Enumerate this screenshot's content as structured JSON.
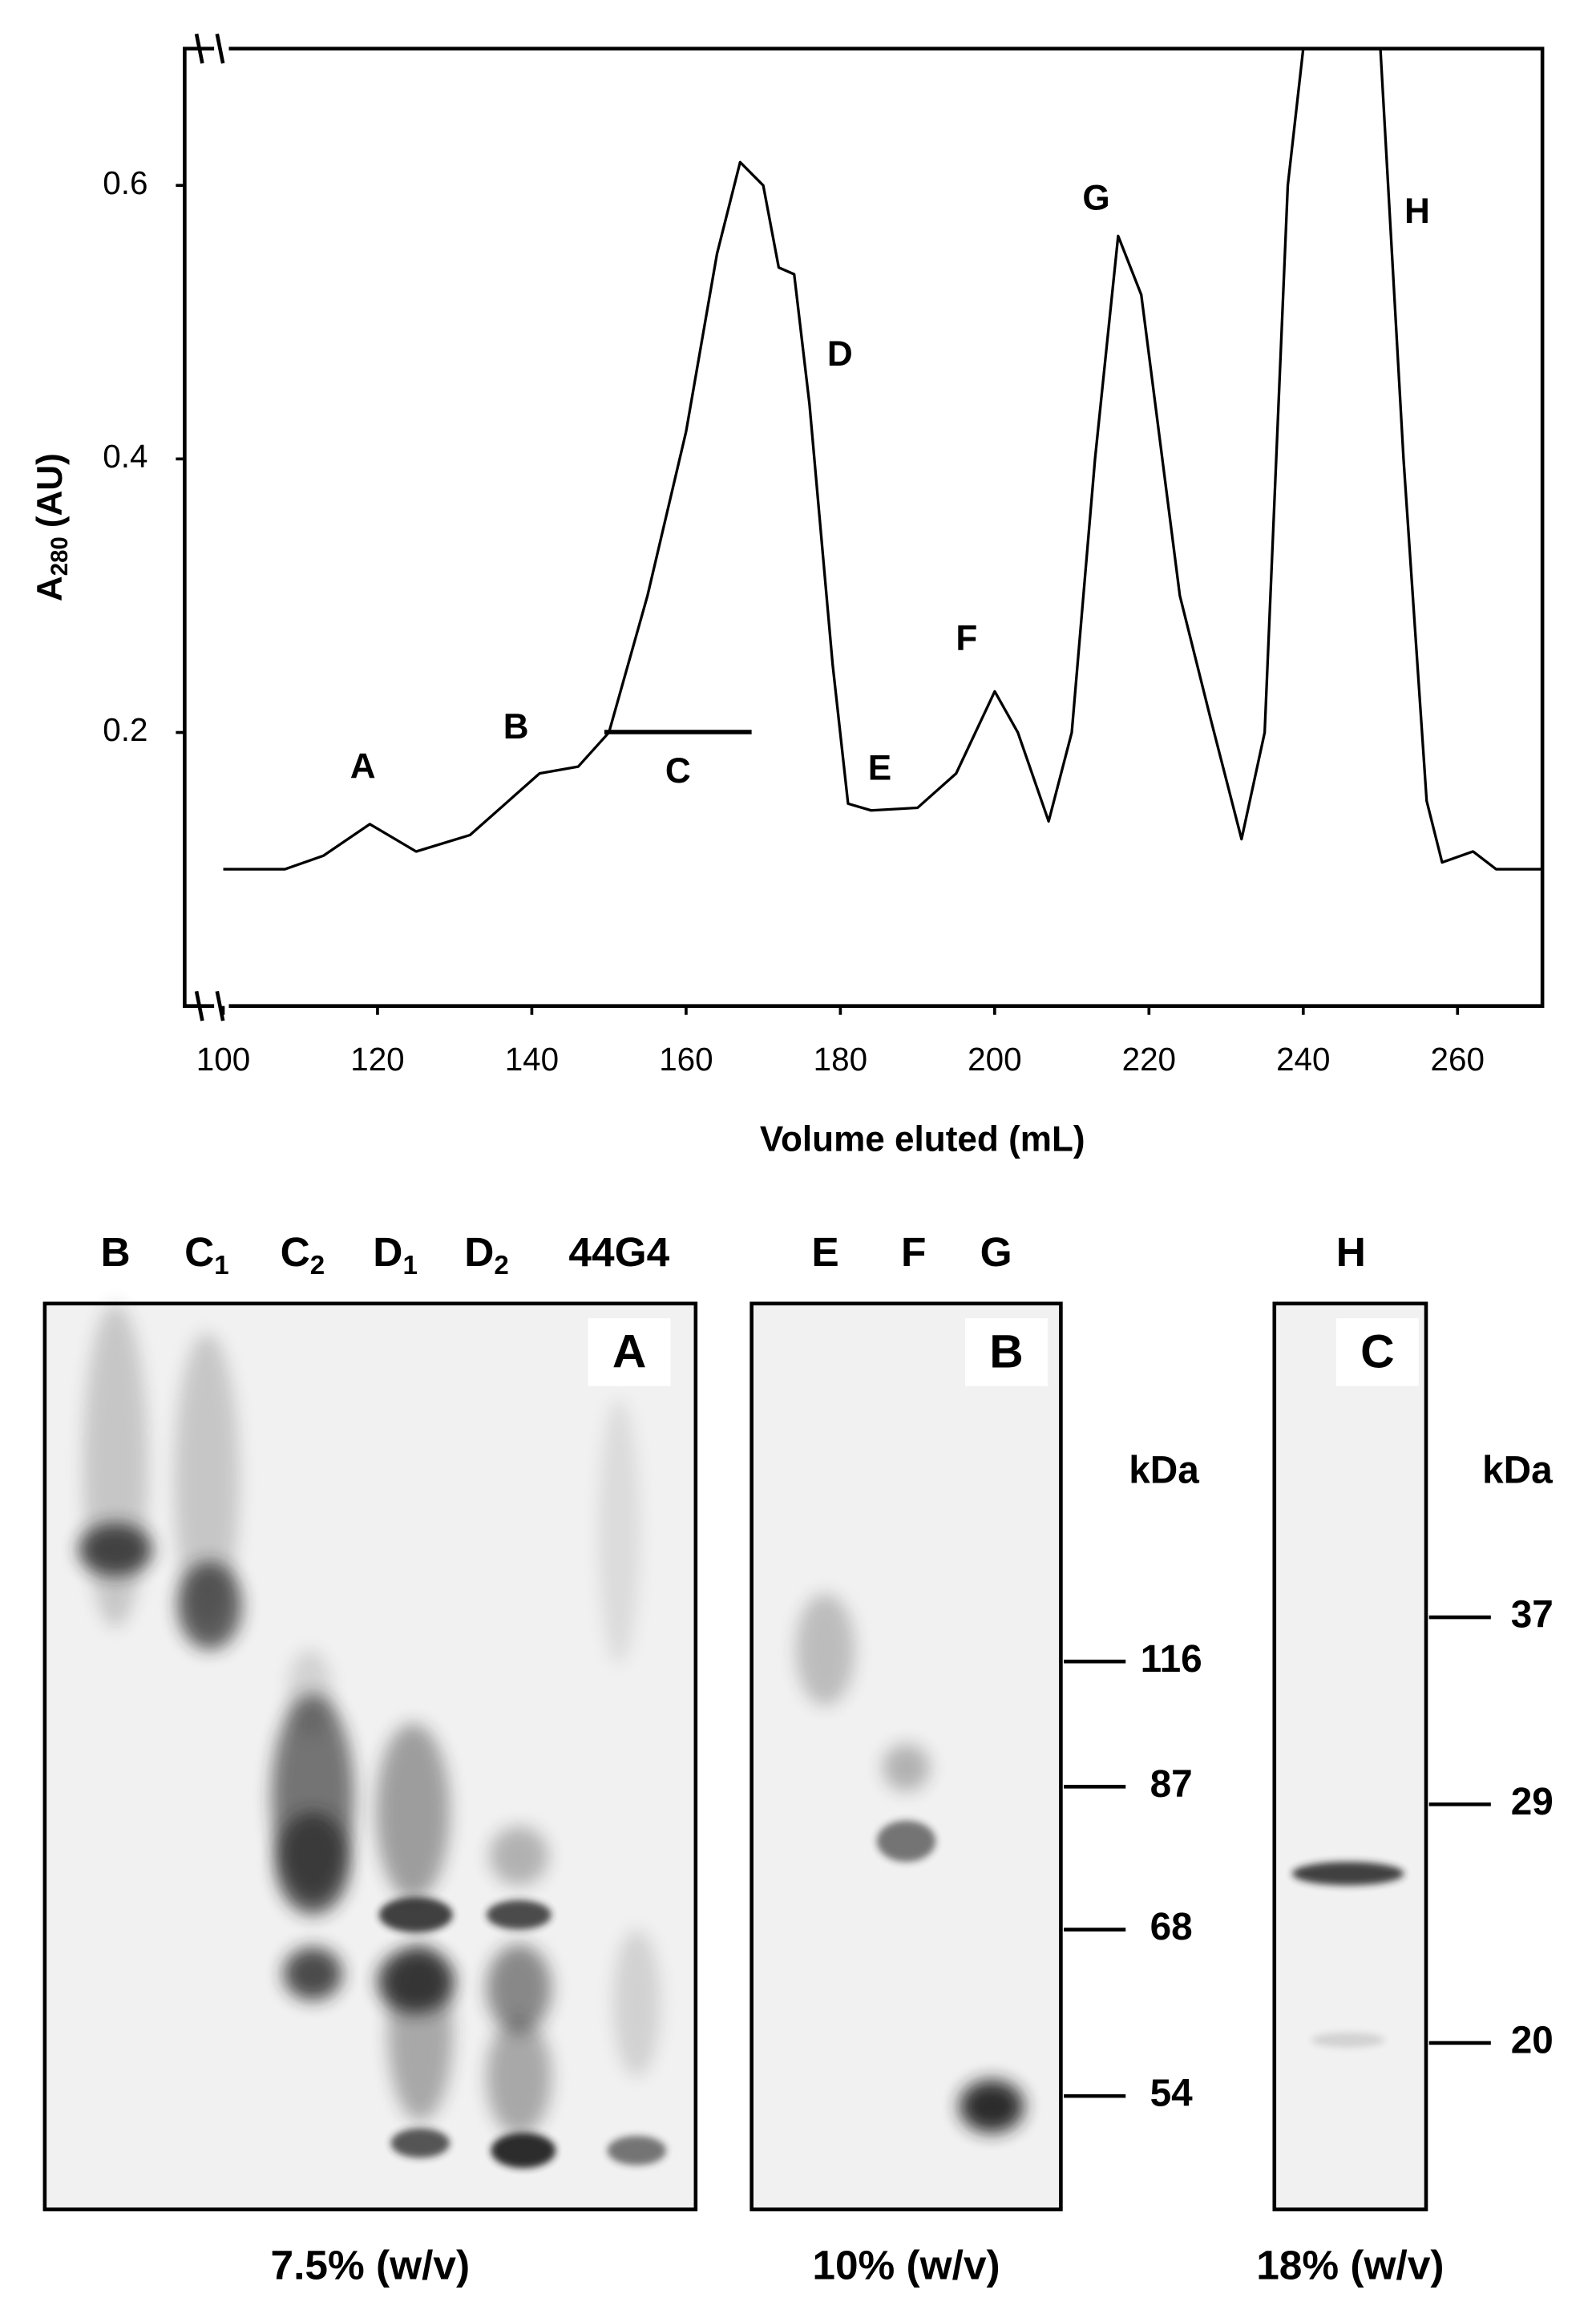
{
  "chart_data": {
    "type": "line",
    "x_label": "Volume eluted (mL)",
    "y_label": {
      "main": "A",
      "sub": "280",
      "unit": "(AU)"
    },
    "xlim": [
      95,
      271
    ],
    "ylim": [
      0,
      0.7
    ],
    "xticks": [
      100,
      120,
      140,
      160,
      180,
      200,
      220,
      240,
      260
    ],
    "yticks": [
      0.2,
      0.4,
      0.6
    ],
    "series": [
      {
        "color": "#000000",
        "x": [
          100,
          108,
          113,
          119,
          125,
          132,
          137,
          141,
          146,
          150,
          155,
          160,
          164,
          167,
          170,
          172,
          174,
          176,
          179,
          181,
          184,
          190,
          195,
          200,
          203,
          207,
          210,
          213,
          216,
          219,
          224,
          228,
          232,
          235,
          238,
          240,
          250,
          253,
          256,
          258,
          262,
          265,
          271
        ],
        "values": [
          0.1,
          0.1,
          0.11,
          0.133,
          0.113,
          0.125,
          0.15,
          0.17,
          0.175,
          0.2,
          0.3,
          0.42,
          0.55,
          0.617,
          0.6,
          0.54,
          0.535,
          0.44,
          0.25,
          0.148,
          0.143,
          0.145,
          0.17,
          0.23,
          0.2,
          0.135,
          0.2,
          0.4,
          0.563,
          0.52,
          0.3,
          0.21,
          0.122,
          0.2,
          0.6,
          0.7,
          0.7,
          0.4,
          0.15,
          0.105,
          0.113,
          0.1,
          0.1
        ]
      }
    ],
    "annotations": [
      "A",
      "B",
      "C",
      "D",
      "E",
      "F",
      "G",
      "H"
    ]
  },
  "gels": [
    {
      "label": "A",
      "lanes": [
        {
          "text": "B"
        },
        {
          "text": "C",
          "sub": "1"
        },
        {
          "text": "C",
          "sub": "2"
        },
        {
          "text": "D",
          "sub": "1"
        },
        {
          "text": "D",
          "sub": "2"
        },
        {
          "text": "44G4"
        }
      ],
      "caption": "7.5% (w/v)"
    },
    {
      "label": "B",
      "lanes": [
        {
          "text": "E"
        },
        {
          "text": "F"
        },
        {
          "text": "G"
        }
      ],
      "caption": "10% (w/v)",
      "unit": "kDa",
      "markers": [
        116,
        87,
        68,
        54
      ]
    },
    {
      "label": "C",
      "lanes": [
        {
          "text": "H"
        }
      ],
      "caption": "18% (w/v)",
      "unit": "kDa",
      "markers": [
        37,
        29,
        20
      ]
    }
  ]
}
